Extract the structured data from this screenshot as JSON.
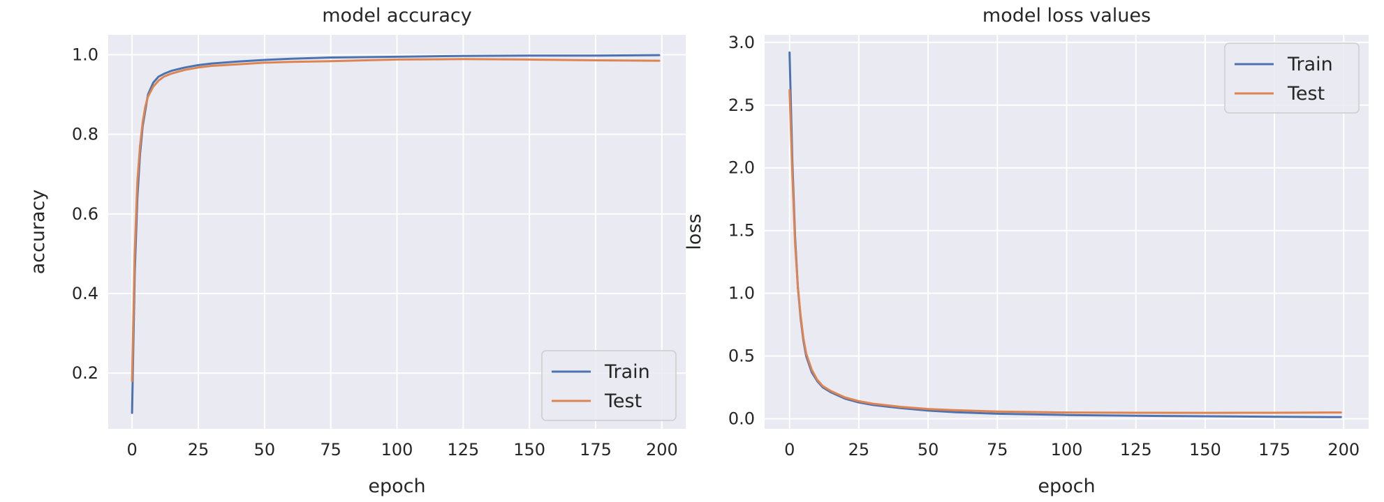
{
  "colors": {
    "train": "#4c72b0",
    "test": "#dd8452",
    "plot_background": "#eaeaf2",
    "grid": "#ffffff",
    "text": "#262626"
  },
  "chart_data": [
    {
      "type": "line",
      "title": "model accuracy",
      "xlabel": "epoch",
      "ylabel": "accuracy",
      "xlim": [
        -9,
        209
      ],
      "ylim": [
        0.06,
        1.05
      ],
      "xticks": [
        0,
        25,
        50,
        75,
        100,
        125,
        150,
        175,
        200
      ],
      "yticks": [
        0.2,
        0.4,
        0.6,
        0.8,
        1.0
      ],
      "ytick_labels": [
        "0.2",
        "0.4",
        "0.6",
        "0.8",
        "1.0"
      ],
      "grid": true,
      "legend": "bottom-right",
      "series": [
        {
          "name": "Train",
          "x": [
            0,
            1,
            2,
            3,
            4,
            5,
            6,
            8,
            10,
            12,
            15,
            20,
            25,
            30,
            40,
            50,
            60,
            75,
            100,
            125,
            150,
            175,
            199
          ],
          "values": [
            0.1,
            0.45,
            0.64,
            0.75,
            0.82,
            0.86,
            0.9,
            0.93,
            0.945,
            0.952,
            0.96,
            0.968,
            0.974,
            0.978,
            0.983,
            0.987,
            0.99,
            0.993,
            0.995,
            0.997,
            0.998,
            0.998,
            0.999
          ]
        },
        {
          "name": "Test",
          "x": [
            0,
            1,
            2,
            3,
            4,
            5,
            6,
            8,
            10,
            12,
            15,
            20,
            25,
            30,
            40,
            50,
            60,
            75,
            100,
            125,
            150,
            175,
            199
          ],
          "values": [
            0.18,
            0.5,
            0.68,
            0.77,
            0.83,
            0.87,
            0.895,
            0.92,
            0.935,
            0.945,
            0.953,
            0.962,
            0.968,
            0.972,
            0.976,
            0.98,
            0.982,
            0.984,
            0.988,
            0.989,
            0.988,
            0.986,
            0.985
          ]
        }
      ]
    },
    {
      "type": "line",
      "title": "model loss values",
      "xlabel": "epoch",
      "ylabel": "loss",
      "xlim": [
        -9,
        209
      ],
      "ylim": [
        -0.08,
        3.06
      ],
      "xticks": [
        0,
        25,
        50,
        75,
        100,
        125,
        150,
        175,
        200
      ],
      "yticks": [
        0.0,
        0.5,
        1.0,
        1.5,
        2.0,
        2.5,
        3.0
      ],
      "ytick_labels": [
        "0.0",
        "0.5",
        "1.0",
        "1.5",
        "2.0",
        "2.5",
        "3.0"
      ],
      "grid": true,
      "legend": "top-right",
      "series": [
        {
          "name": "Train",
          "x": [
            0,
            1,
            2,
            3,
            4,
            5,
            6,
            8,
            10,
            12,
            15,
            20,
            25,
            30,
            40,
            50,
            60,
            75,
            100,
            125,
            150,
            175,
            199
          ],
          "values": [
            2.92,
            2.05,
            1.45,
            1.05,
            0.8,
            0.62,
            0.5,
            0.37,
            0.3,
            0.25,
            0.21,
            0.16,
            0.13,
            0.11,
            0.085,
            0.065,
            0.052,
            0.04,
            0.03,
            0.024,
            0.02,
            0.016,
            0.013
          ]
        },
        {
          "name": "Test",
          "x": [
            0,
            1,
            2,
            3,
            4,
            5,
            6,
            8,
            10,
            12,
            15,
            20,
            25,
            30,
            40,
            50,
            60,
            75,
            100,
            125,
            150,
            175,
            199
          ],
          "values": [
            2.62,
            1.95,
            1.4,
            1.05,
            0.82,
            0.64,
            0.52,
            0.39,
            0.31,
            0.26,
            0.22,
            0.17,
            0.14,
            0.12,
            0.095,
            0.078,
            0.068,
            0.058,
            0.05,
            0.048,
            0.047,
            0.048,
            0.05
          ]
        }
      ]
    }
  ]
}
